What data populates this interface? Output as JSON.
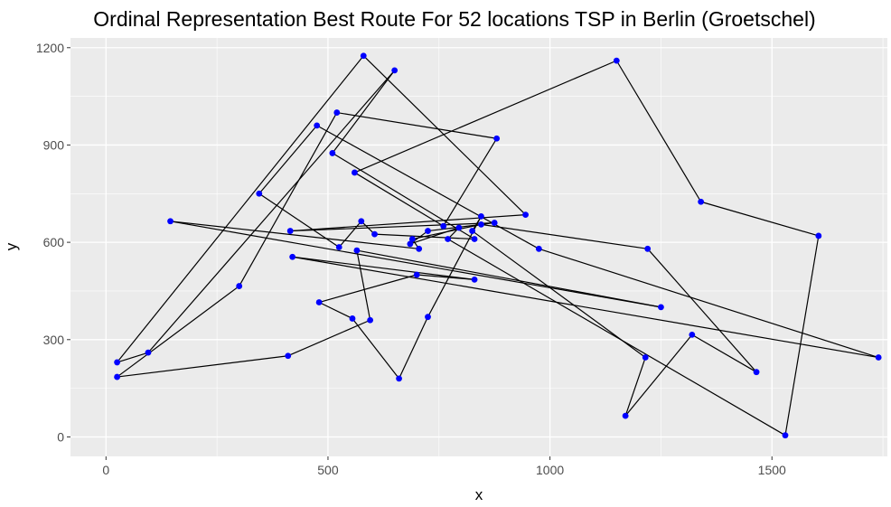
{
  "chart_data": {
    "type": "scatter",
    "title": "Ordinal Representation Best Route For 52 locations TSP in Berlin (Groetschel)",
    "xlabel": "x",
    "ylabel": "y",
    "xlim": [
      -80,
      1760
    ],
    "ylim": [
      -60,
      1230
    ],
    "x_ticks": [
      0,
      500,
      1000,
      1500
    ],
    "y_ticks": [
      0,
      300,
      600,
      900,
      1200
    ],
    "x_tick_labels": [
      "0",
      "500",
      "1000",
      "1500"
    ],
    "y_tick_labels": [
      "0",
      "300",
      "600",
      "900",
      "1200"
    ],
    "grid": true,
    "legend": "none",
    "colors": {
      "panel": "#ebebeb",
      "grid_major": "#ffffff",
      "point": "#0000ff",
      "route": "#000000",
      "tick": "#333333"
    },
    "series": [
      {
        "mode": "lines+markers",
        "closed": true,
        "points": [
          [
            1530,
            5
          ],
          [
            1605,
            620
          ],
          [
            1340,
            725
          ],
          [
            1150,
            1160
          ],
          [
            560,
            815
          ],
          [
            760,
            650
          ],
          [
            880,
            920
          ],
          [
            520,
            1000
          ],
          [
            300,
            465
          ],
          [
            25,
            185
          ],
          [
            410,
            250
          ],
          [
            595,
            360
          ],
          [
            565,
            575
          ],
          [
            1250,
            400
          ],
          [
            145,
            665
          ],
          [
            705,
            580
          ],
          [
            690,
            610
          ],
          [
            845,
            655
          ],
          [
            1220,
            580
          ],
          [
            1465,
            200
          ],
          [
            1320,
            315
          ],
          [
            1170,
            65
          ],
          [
            1215,
            245
          ],
          [
            825,
            635
          ],
          [
            845,
            680
          ],
          [
            725,
            370
          ],
          [
            660,
            180
          ],
          [
            555,
            365
          ],
          [
            480,
            415
          ],
          [
            700,
            500
          ],
          [
            830,
            485
          ],
          [
            420,
            555
          ],
          [
            1740,
            245
          ],
          [
            975,
            580
          ],
          [
            475,
            960
          ],
          [
            345,
            750
          ],
          [
            525,
            585
          ],
          [
            575,
            665
          ],
          [
            605,
            625
          ],
          [
            830,
            610
          ],
          [
            510,
            875
          ],
          [
            650,
            1130
          ],
          [
            95,
            260
          ],
          [
            25,
            230
          ],
          [
            580,
            1175
          ],
          [
            945,
            685
          ],
          [
            415,
            635
          ],
          [
            875,
            660
          ],
          [
            725,
            635
          ],
          [
            685,
            595
          ],
          [
            795,
            645
          ],
          [
            770,
            610
          ]
        ]
      }
    ]
  }
}
